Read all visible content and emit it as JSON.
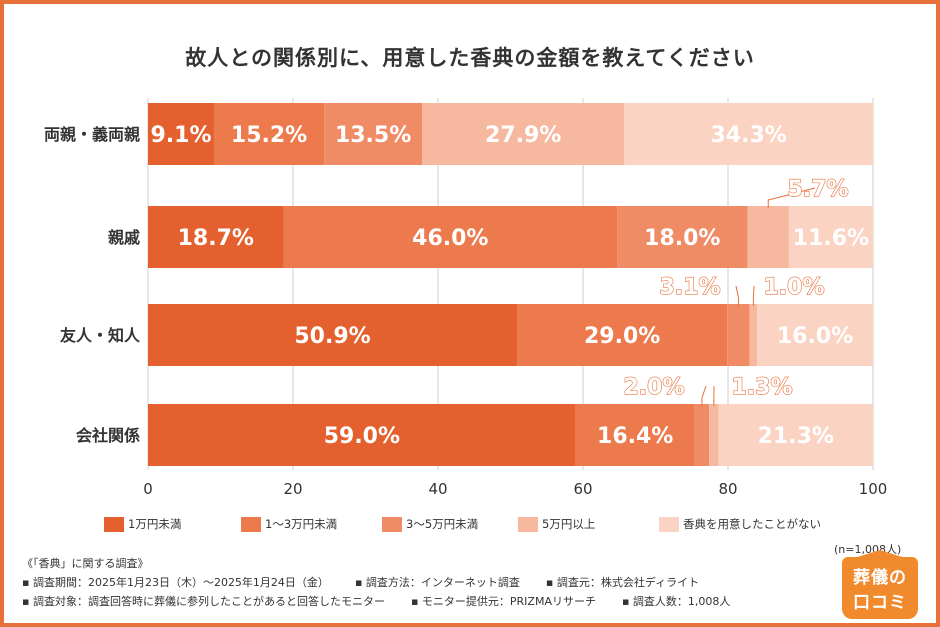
{
  "title": "故人との関係別に、用意した香典の金額を教えてください",
  "chart_data": {
    "type": "bar",
    "orientation": "horizontal",
    "stacked": true,
    "title": "故人との関係別に、用意した香典の金額を教えてください",
    "categories": [
      "両親・義両親",
      "親戚",
      "友人・知人",
      "会社関係"
    ],
    "series": [
      {
        "name": "1万円未満",
        "color": "#e4612f",
        "values": [
          9.1,
          18.7,
          50.9,
          59.0
        ]
      },
      {
        "name": "1～3万円未満",
        "color": "#ec7a4d",
        "values": [
          15.2,
          46.0,
          29.0,
          16.4
        ]
      },
      {
        "name": "3～5万円未満",
        "color": "#f08c65",
        "values": [
          13.5,
          18.0,
          3.1,
          2.0
        ]
      },
      {
        "name": "5万円以上",
        "color": "#f6b9a0",
        "values": [
          27.9,
          5.7,
          1.0,
          1.3
        ]
      },
      {
        "name": "香典を用意したことがない",
        "color": "#fbd3c3",
        "values": [
          34.3,
          11.6,
          16.0,
          21.3
        ]
      }
    ],
    "data_labels": [
      [
        "9.1%",
        "15.2%",
        "13.5%",
        "27.9%",
        "34.3%"
      ],
      [
        "18.7%",
        "46.0%",
        "18.0%",
        "5.7%",
        "11.6%"
      ],
      [
        "50.9%",
        "29.0%",
        "3.1%",
        "1.0%",
        "16.0%"
      ],
      [
        "59.0%",
        "16.4%",
        "2.0%",
        "1.3%",
        "21.3%"
      ]
    ],
    "xlim": [
      0,
      100
    ],
    "xticks": [
      "0",
      "20",
      "40",
      "60",
      "80",
      "100"
    ],
    "grid": true,
    "legend": "bottom"
  },
  "legend": [
    {
      "label": "1万円未満",
      "color": "#e4612f"
    },
    {
      "label": "1～3万円未満",
      "color": "#ec7a4d"
    },
    {
      "label": "3～5万円未満",
      "color": "#f08c65"
    },
    {
      "label": "5万円以上",
      "color": "#f6b9a0"
    },
    {
      "label": "香典を用意したことがない",
      "color": "#fbd3c3"
    }
  ],
  "footer": {
    "heading": "《「香典」に関する調査》",
    "period": "▪ 調査期間：2025年1月23日（木）～2025年1月24日（金）",
    "method": "▪ 調査方法：インターネット調査",
    "source": "▪ 調査元：株式会社ディライト",
    "target": "▪ 調査対象：調査回答時に葬儀に参列したことがあると回答したモニター",
    "provider": "▪ モニター提供元：PRIZMAリサーチ",
    "count": "▪ 調査人数：1,008人"
  },
  "sample_size": "(n=1,008人)",
  "logo": {
    "line1": "葬儀の",
    "line2": "口コミ"
  },
  "colors": {
    "accent": "#e8703a",
    "grid": "#cccccc"
  }
}
